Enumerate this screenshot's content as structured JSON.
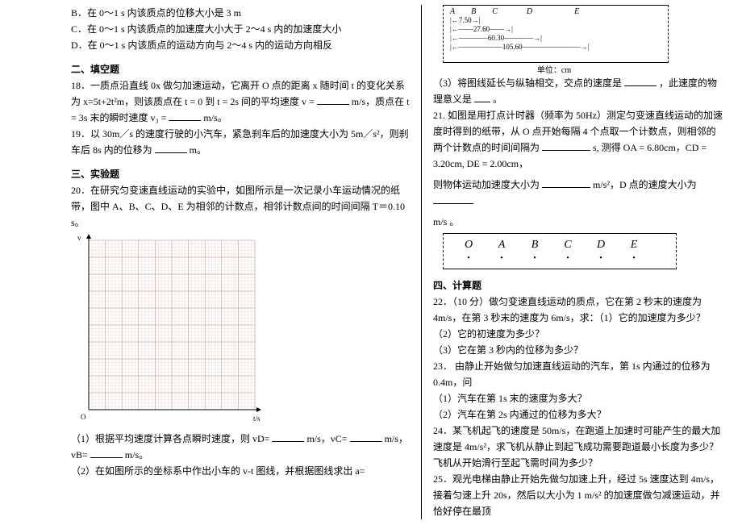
{
  "left": {
    "optB": "B．在 0～1 s 内该质点的位移大小是 3 m",
    "optC": "C．在 0～1 s 内该质点的加速度大小大于 2～4 s 内的加速度大小",
    "optD": "D．在 0～1 s 内该质点的运动方向与 2～4 s 内的运动方向相反",
    "sec2": "二、填空题",
    "q18a": "18．一质点沿直线 0x 做匀加速运动，它离开 O 点的距离 x 随时间 t 的变化关系为 x=5t+2t²m，则该质点在 t = 0 到 t = 2s 间的平均速度 v =",
    "q18b": "m/s，质点在 t = 3s 末的瞬时速度 v₃ =",
    "q18c": "m/s。",
    "q19a": "19．以 30m／s 的速度行驶的小汽车，紧急刹车后的加速度大小为 5m／s²，则刹车后 8s 内的位移为",
    "q19b": "m。",
    "sec3": "三、实验题",
    "q20a": "20．在研究匀变速直线运动的实验中，如图所示是一次记录小车运动情况的纸带，图中 A、B、C、D、E 为相邻的计数点，相邻计数点间的时间间隔 T＝0.10 s。",
    "graph": {
      "xmin": 0,
      "xmax": 0.5,
      "ymin": 0,
      "ymax": 0.6,
      "grid_major_color": "#c98888",
      "grid_minor_color": "#e8c0c0",
      "axis_color": "#000000",
      "xlabel": "t/s",
      "ylabel": "v"
    },
    "q20s1a": "（1）根据平均速度计算各点瞬时速度，则 vD=",
    "q20s1b": " m/s，vC=",
    "q20s1c": "m/s，",
    "q20s1d": "vB=",
    "q20s1e": "m/s。",
    "q20s2": "（2）在如图所示的坐标系中作出小车的 v-t 图线，并根据图线求出 a="
  },
  "right": {
    "tape": {
      "labels": [
        "A",
        "B",
        "C",
        "D",
        "E"
      ],
      "d1": "7.50",
      "d2": "27.60",
      "d3": "60.30",
      "d4": "105.60",
      "unit": "单位：cm"
    },
    "q20s3a": "（3）将图线延长与纵轴相交，交点的速度是",
    "q20s3b": "，此速度的物理意义是",
    "q20s3c": "。",
    "q21a": "21. 如图是用打点计时器（频率为 50Hz）测定匀变速直线运动的加速度时得到的纸带，从 O 点开始每隔 4 个点取一个计数点，则相邻的两个计数点的时间间隔为",
    "q21b": "s, 测得 OA = 6.80cm，CD = 3.20cm, DE = 2.00cm，",
    "q21c": "则物体运动加速度大小为",
    "q21d": "m/s²，D 点的速度大小为",
    "q21e": "m/s 。",
    "tape2_labels": [
      "O",
      "A",
      "B",
      "C",
      "D",
      "E"
    ],
    "sec4": "四、计算题",
    "q22a": "22．（10 分）做匀变速直线运动的质点，它在第 2 秒末的速度为 4m/s，在第 3 秒末的速度为 6m/s，求：（1）它的加速度为多少？",
    "q22b": "（2）它的初速度为多少？",
    "q22c": "（3）它在第 3 秒内的位移为多少？",
    "q23a": "23．  由静止开始做匀加速直线运动的汽车，第 1s 内通过的位移为 0.4m，问",
    "q23b": "（1）汽车在第 1s 末的速度为多大？",
    "q23c": "（2）汽车在第 2s 内通过的位移为多大？",
    "q24": "24．某飞机起飞的速度是 50m/s，在跑道上加速时可能产生的最大加速度是 4m/s²，求飞机从静止到起飞成功需要跑道最小长度为多少？飞机从开始滑行至起飞需时间为多少？",
    "q25": "25．观光电梯由静止开始先做匀加速上升，经过 5s 速度达到 4m/s，接着匀速上升 20s，然后以大小为 1 m/s² 的加速度做匀减速运动，并恰好停在最顶"
  }
}
